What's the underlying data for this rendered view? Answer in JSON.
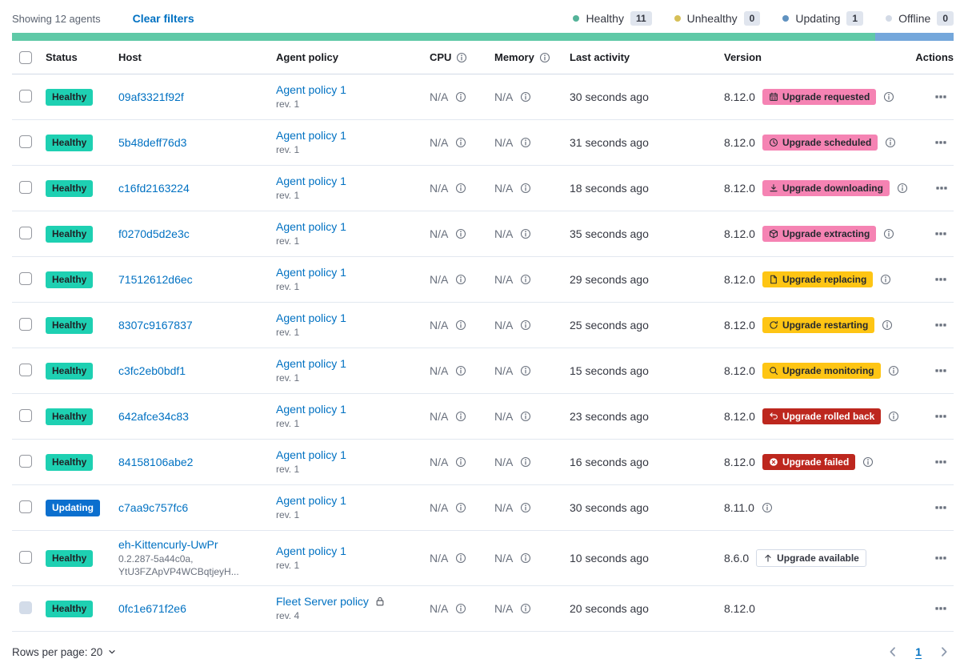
{
  "toolbar": {
    "showing": "Showing 12 agents",
    "clear_filters": "Clear filters",
    "legend": [
      {
        "label": "Healthy",
        "count": "11",
        "color": "#54b399",
        "icon": "healthy-dot-icon"
      },
      {
        "label": "Unhealthy",
        "count": "0",
        "color": "#d6bf57",
        "icon": "unhealthy-dot-icon"
      },
      {
        "label": "Updating",
        "count": "1",
        "color": "#6092c0",
        "icon": "updating-dot-icon"
      },
      {
        "label": "Offline",
        "count": "0",
        "color": "#d3dae6",
        "icon": "offline-dot-icon"
      }
    ]
  },
  "health_bar": {
    "segments": [
      {
        "status": "healthy",
        "color": "#5fc9a7",
        "fraction": 0.9167
      },
      {
        "status": "updating",
        "color": "#74a7db",
        "fraction": 0.0833
      }
    ]
  },
  "table": {
    "headers": {
      "status": "Status",
      "host": "Host",
      "policy": "Agent policy",
      "cpu": "CPU",
      "memory": "Memory",
      "last_activity": "Last activity",
      "version": "Version",
      "actions": "Actions"
    },
    "rows": [
      {
        "status": {
          "label": "Healthy",
          "variant": "success"
        },
        "host": "09af3321f92f",
        "host_sub": [],
        "policy": {
          "name": "Agent policy 1",
          "rev": "rev. 1",
          "lock": false
        },
        "cpu": "N/A",
        "memory": "N/A",
        "last_activity": "30 seconds ago",
        "version": "8.12.0",
        "upgrade": {
          "label": "Upgrade requested",
          "icon": "calendar-icon",
          "variant": "accent"
        },
        "info": true,
        "checkbox_disabled": false
      },
      {
        "status": {
          "label": "Healthy",
          "variant": "success"
        },
        "host": "5b48deff76d3",
        "host_sub": [],
        "policy": {
          "name": "Agent policy 1",
          "rev": "rev. 1",
          "lock": false
        },
        "cpu": "N/A",
        "memory": "N/A",
        "last_activity": "31 seconds ago",
        "version": "8.12.0",
        "upgrade": {
          "label": "Upgrade scheduled",
          "icon": "clock-icon",
          "variant": "accent"
        },
        "info": true,
        "checkbox_disabled": false
      },
      {
        "status": {
          "label": "Healthy",
          "variant": "success"
        },
        "host": "c16fd2163224",
        "host_sub": [],
        "policy": {
          "name": "Agent policy 1",
          "rev": "rev. 1",
          "lock": false
        },
        "cpu": "N/A",
        "memory": "N/A",
        "last_activity": "18 seconds ago",
        "version": "8.12.0",
        "upgrade": {
          "label": "Upgrade downloading",
          "icon": "download-icon",
          "variant": "accent"
        },
        "info": true,
        "checkbox_disabled": false
      },
      {
        "status": {
          "label": "Healthy",
          "variant": "success"
        },
        "host": "f0270d5d2e3c",
        "host_sub": [],
        "policy": {
          "name": "Agent policy 1",
          "rev": "rev. 1",
          "lock": false
        },
        "cpu": "N/A",
        "memory": "N/A",
        "last_activity": "35 seconds ago",
        "version": "8.12.0",
        "upgrade": {
          "label": "Upgrade extracting",
          "icon": "package-icon",
          "variant": "accent"
        },
        "info": true,
        "checkbox_disabled": false
      },
      {
        "status": {
          "label": "Healthy",
          "variant": "success"
        },
        "host": "71512612d6ec",
        "host_sub": [],
        "policy": {
          "name": "Agent policy 1",
          "rev": "rev. 1",
          "lock": false
        },
        "cpu": "N/A",
        "memory": "N/A",
        "last_activity": "29 seconds ago",
        "version": "8.12.0",
        "upgrade": {
          "label": "Upgrade replacing",
          "icon": "document-icon",
          "variant": "warning"
        },
        "info": true,
        "checkbox_disabled": false
      },
      {
        "status": {
          "label": "Healthy",
          "variant": "success"
        },
        "host": "8307c9167837",
        "host_sub": [],
        "policy": {
          "name": "Agent policy 1",
          "rev": "rev. 1",
          "lock": false
        },
        "cpu": "N/A",
        "memory": "N/A",
        "last_activity": "25 seconds ago",
        "version": "8.12.0",
        "upgrade": {
          "label": "Upgrade restarting",
          "icon": "refresh-icon",
          "variant": "warning"
        },
        "info": true,
        "checkbox_disabled": false
      },
      {
        "status": {
          "label": "Healthy",
          "variant": "success"
        },
        "host": "c3fc2eb0bdf1",
        "host_sub": [],
        "policy": {
          "name": "Agent policy 1",
          "rev": "rev. 1",
          "lock": false
        },
        "cpu": "N/A",
        "memory": "N/A",
        "last_activity": "15 seconds ago",
        "version": "8.12.0",
        "upgrade": {
          "label": "Upgrade monitoring",
          "icon": "inspect-icon",
          "variant": "warning"
        },
        "info": true,
        "checkbox_disabled": false
      },
      {
        "status": {
          "label": "Healthy",
          "variant": "success"
        },
        "host": "642afce34c83",
        "host_sub": [],
        "policy": {
          "name": "Agent policy 1",
          "rev": "rev. 1",
          "lock": false
        },
        "cpu": "N/A",
        "memory": "N/A",
        "last_activity": "23 seconds ago",
        "version": "8.12.0",
        "upgrade": {
          "label": "Upgrade rolled back",
          "icon": "return-arrow-icon",
          "variant": "danger"
        },
        "info": true,
        "checkbox_disabled": false
      },
      {
        "status": {
          "label": "Healthy",
          "variant": "success"
        },
        "host": "84158106abe2",
        "host_sub": [],
        "policy": {
          "name": "Agent policy 1",
          "rev": "rev. 1",
          "lock": false
        },
        "cpu": "N/A",
        "memory": "N/A",
        "last_activity": "16 seconds ago",
        "version": "8.12.0",
        "upgrade": {
          "label": "Upgrade failed",
          "icon": "cross-in-circle-icon",
          "variant": "danger"
        },
        "info": true,
        "checkbox_disabled": false
      },
      {
        "status": {
          "label": "Updating",
          "variant": "primary"
        },
        "host": "c7aa9c757fc6",
        "host_sub": [],
        "policy": {
          "name": "Agent policy 1",
          "rev": "rev. 1",
          "lock": false
        },
        "cpu": "N/A",
        "memory": "N/A",
        "last_activity": "30 seconds ago",
        "version": "8.11.0",
        "upgrade": null,
        "info": true,
        "checkbox_disabled": false
      },
      {
        "status": {
          "label": "Healthy",
          "variant": "success"
        },
        "host": "eh-Kittencurly-UwPr",
        "host_sub": [
          "0.2.287-5a44c0a,",
          "YtU3FZApVP4WCBqtjeyH..."
        ],
        "policy": {
          "name": "Agent policy 1",
          "rev": "rev. 1",
          "lock": false
        },
        "cpu": "N/A",
        "memory": "N/A",
        "last_activity": "10 seconds ago",
        "version": "8.6.0",
        "upgrade": {
          "label": "Upgrade available",
          "icon": "arrow-up-icon",
          "variant": "hollow"
        },
        "info": false,
        "checkbox_disabled": false
      },
      {
        "status": {
          "label": "Healthy",
          "variant": "success"
        },
        "host": "0fc1e671f2e6",
        "host_sub": [],
        "policy": {
          "name": "Fleet Server policy",
          "rev": "rev. 4",
          "lock": true
        },
        "cpu": "N/A",
        "memory": "N/A",
        "last_activity": "20 seconds ago",
        "version": "8.12.0",
        "upgrade": null,
        "info": false,
        "checkbox_disabled": true
      }
    ]
  },
  "footer": {
    "rows_per_page": "Rows per page: 20",
    "page": "1"
  },
  "colors": {
    "link": "#0071c2",
    "healthy_badge": "#1ed0b2",
    "updating_badge": "#0b6fce",
    "accent_badge": "#f583b3",
    "warning_badge": "#fec514",
    "danger_badge": "#bd271e"
  }
}
